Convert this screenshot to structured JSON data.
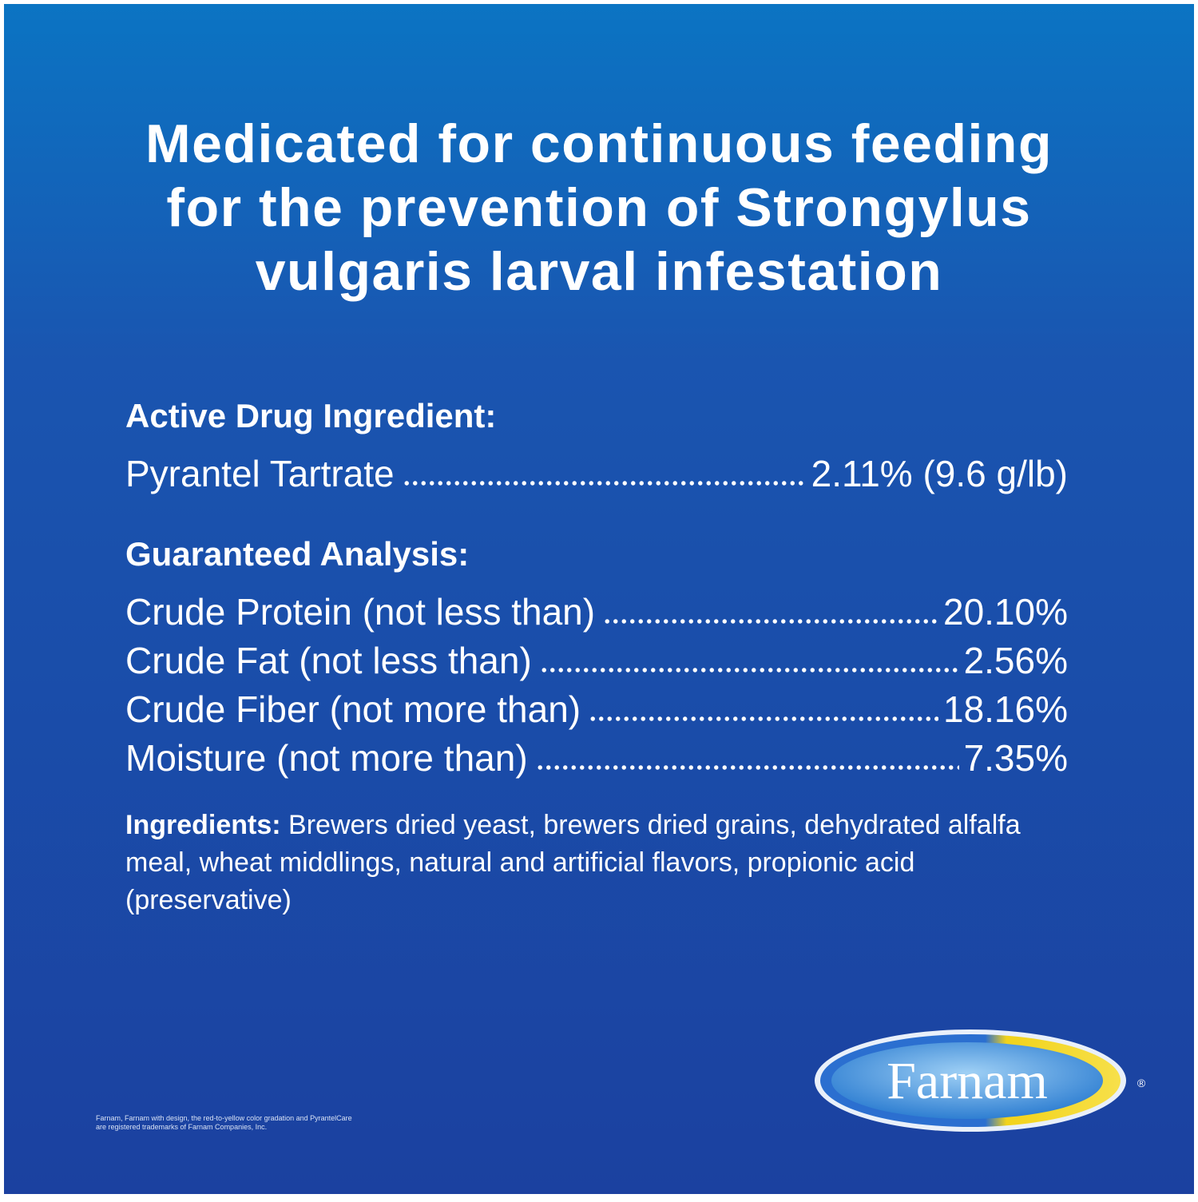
{
  "headline": [
    "Medicated for continuous feeding",
    "for the prevention of Strongylus",
    "vulgaris larval infestation"
  ],
  "active": {
    "heading": "Active Drug Ingredient:",
    "rows": [
      {
        "name": "Pyrantel Tartrate",
        "value": "2.11% (9.6 g/lb)"
      }
    ]
  },
  "analysis": {
    "heading": "Guaranteed Analysis:",
    "rows": [
      {
        "name": "Crude Protein (not less than)",
        "value": "20.10%"
      },
      {
        "name": "Crude Fat (not less than)",
        "value": "2.56%"
      },
      {
        "name": "Crude Fiber (not more than)",
        "value": "18.16%"
      },
      {
        "name": "Moisture (not more than)",
        "value": "7.35%"
      }
    ]
  },
  "ingredients": {
    "label": "Ingredients:",
    "text": "Brewers dried yeast, brewers dried grains, dehydrated alfalfa meal, wheat middlings, natural and artificial flavors, propionic acid (preservative)"
  },
  "logo": {
    "name": "Farnam",
    "mark": "®"
  },
  "footnote": [
    "Farnam, Farnam with design, the red-to-yellow color gradation and PyrantelCare",
    "are registered trademarks of Farnam Companies, Inc."
  ]
}
